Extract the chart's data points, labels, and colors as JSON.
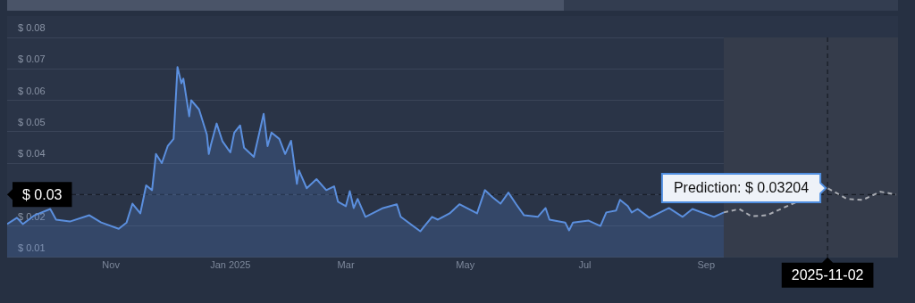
{
  "chart_data": {
    "type": "area",
    "grid": "y",
    "legend": false,
    "marker": "none",
    "ylim": [
      0.01,
      0.08
    ],
    "yticks": [
      {
        "value": 0.01,
        "label": "$ 0.01"
      },
      {
        "value": 0.02,
        "label": "$ 0.02"
      },
      {
        "value": 0.03,
        "label": null
      },
      {
        "value": 0.04,
        "label": "$ 0.04"
      },
      {
        "value": 0.05,
        "label": "$ 0.05"
      },
      {
        "value": 0.06,
        "label": "$ 0.06"
      },
      {
        "value": 0.07,
        "label": "$ 0.07"
      },
      {
        "value": 0.08,
        "label": "$ 0.08"
      }
    ],
    "xlim": [
      "2024-09-09",
      "2025-12-08"
    ],
    "xticks": [
      {
        "value": "2024-11-01",
        "label": "Nov"
      },
      {
        "value": "2025-01-01",
        "label": "Jan 2025"
      },
      {
        "value": "2025-03-01",
        "label": "Mar"
      },
      {
        "value": "2025-05-01",
        "label": "May"
      },
      {
        "value": "2025-07-01",
        "label": "Jul"
      },
      {
        "value": "2025-09-01",
        "label": "Sep"
      }
    ],
    "series": [
      {
        "color": "#5b8fde",
        "x": [
          "2024-09-09",
          "2024-09-14",
          "2024-09-17",
          "2024-09-23",
          "2024-10-01",
          "2024-10-04",
          "2024-10-11",
          "2024-10-21",
          "2024-10-27",
          "2024-11-05",
          "2024-11-09",
          "2024-11-12",
          "2024-11-16",
          "2024-11-19",
          "2024-11-22",
          "2024-11-24",
          "2024-11-27",
          "2024-11-30",
          "2024-12-03",
          "2024-12-05",
          "2024-12-07",
          "2024-12-08",
          "2024-12-11",
          "2024-12-12",
          "2024-12-16",
          "2024-12-20",
          "2024-12-21",
          "2024-12-22",
          "2024-12-25",
          "2024-12-28",
          "2025-01-01",
          "2025-01-03",
          "2025-01-06",
          "2025-01-08",
          "2025-01-13",
          "2025-01-18",
          "2025-01-20",
          "2025-01-22",
          "2025-01-26",
          "2025-01-29",
          "2025-02-01",
          "2025-02-04",
          "2025-02-05",
          "2025-02-09",
          "2025-02-14",
          "2025-02-19",
          "2025-02-23",
          "2025-02-25",
          "2025-03-01",
          "2025-03-03",
          "2025-03-05",
          "2025-03-07",
          "2025-03-11",
          "2025-03-20",
          "2025-03-27",
          "2025-03-29",
          "2025-04-08",
          "2025-04-14",
          "2025-04-17",
          "2025-04-23",
          "2025-04-28",
          "2025-05-07",
          "2025-05-11",
          "2025-05-15",
          "2025-05-19",
          "2025-05-23",
          "2025-05-27",
          "2025-05-31",
          "2025-06-07",
          "2025-06-11",
          "2025-06-13",
          "2025-06-21",
          "2025-06-23",
          "2025-06-25",
          "2025-07-03",
          "2025-07-09",
          "2025-07-12",
          "2025-07-17",
          "2025-07-19",
          "2025-07-23",
          "2025-07-25",
          "2025-07-28",
          "2025-08-03",
          "2025-08-13",
          "2025-08-20",
          "2025-08-25",
          "2025-09-05",
          "2025-09-10"
        ],
        "values": [
          0.0206,
          0.0226,
          0.0206,
          0.0234,
          0.0254,
          0.022,
          0.0214,
          0.0234,
          0.0211,
          0.0191,
          0.0211,
          0.0271,
          0.024,
          0.0329,
          0.0314,
          0.0429,
          0.04,
          0.0454,
          0.0477,
          0.0706,
          0.0654,
          0.0669,
          0.0549,
          0.06,
          0.0571,
          0.0491,
          0.0429,
          0.0457,
          0.0526,
          0.0469,
          0.0434,
          0.0497,
          0.052,
          0.0449,
          0.042,
          0.0557,
          0.0454,
          0.0497,
          0.0477,
          0.0429,
          0.0471,
          0.0334,
          0.0377,
          0.032,
          0.0349,
          0.0314,
          0.0326,
          0.0277,
          0.0263,
          0.0311,
          0.0257,
          0.0286,
          0.0229,
          0.0257,
          0.0269,
          0.0229,
          0.0183,
          0.0229,
          0.022,
          0.024,
          0.0269,
          0.024,
          0.0314,
          0.0291,
          0.0271,
          0.0306,
          0.0269,
          0.0234,
          0.0229,
          0.0257,
          0.022,
          0.0211,
          0.0186,
          0.0211,
          0.0217,
          0.02,
          0.0243,
          0.0249,
          0.0283,
          0.0263,
          0.0243,
          0.0254,
          0.0226,
          0.0257,
          0.0229,
          0.0254,
          0.0229,
          0.0243
        ]
      },
      {
        "type": "line",
        "color": "#a9acb3",
        "line_style": "dashed",
        "x": [
          "2025-09-10",
          "2025-09-18",
          "2025-09-24",
          "2025-10-02",
          "2025-10-09",
          "2025-11-02",
          "2025-11-12",
          "2025-11-20",
          "2025-11-29",
          "2025-12-07"
        ],
        "values": [
          0.0243,
          0.0254,
          0.0231,
          0.0234,
          null,
          0.03204,
          0.0286,
          0.0283,
          0.0309,
          0.03
        ]
      }
    ],
    "bands": [
      {
        "axis": "x",
        "from": "2025-09-10",
        "to": "2025-12-08",
        "color": "#353c4b"
      }
    ],
    "ref_lines": [
      {
        "axis": "y",
        "value": 0.03,
        "label": "$ 0.03",
        "line_style": "dashed"
      },
      {
        "axis": "x",
        "value": "2025-11-02",
        "label": "2025-11-02",
        "line_style": "dashed"
      }
    ],
    "annotations": [
      {
        "text": "Prediction: $ 0.03204",
        "x": "2025-11-02",
        "y": 0.03204
      }
    ]
  }
}
